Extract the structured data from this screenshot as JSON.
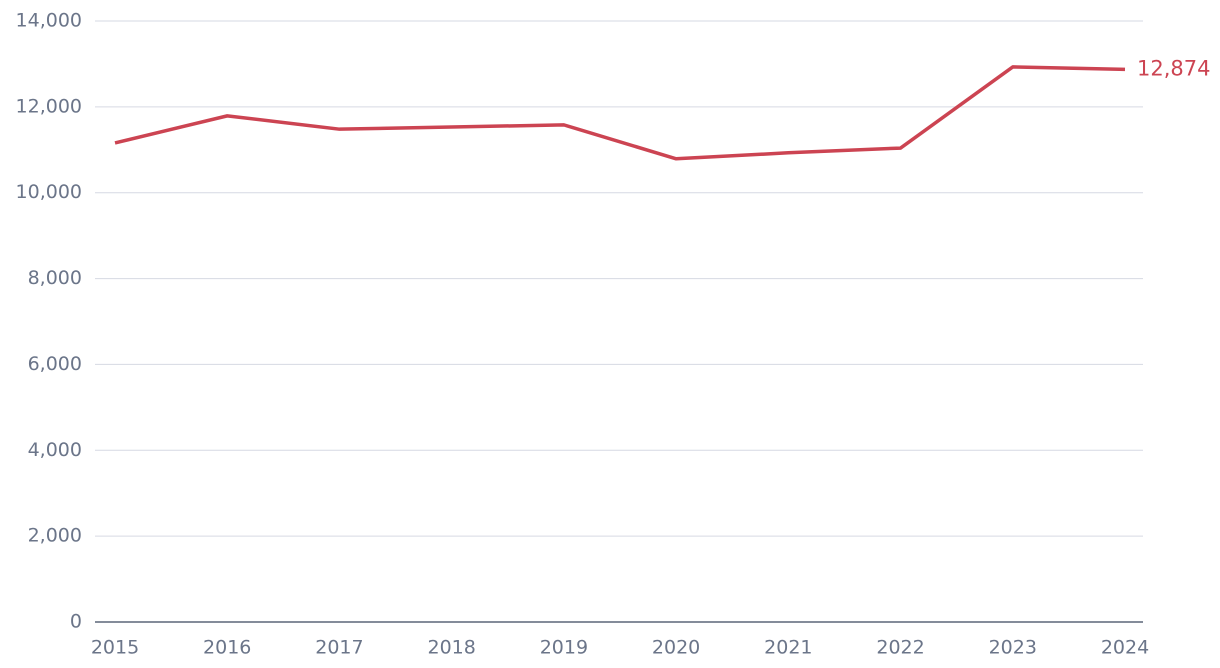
{
  "chart_data": {
    "type": "line",
    "categories": [
      "2015",
      "2016",
      "2017",
      "2018",
      "2019",
      "2020",
      "2021",
      "2022",
      "2023",
      "2024"
    ],
    "series": [
      {
        "color": "#cc4452",
        "values": [
          11160,
          11790,
          11480,
          11530,
          11580,
          10790,
          10930,
          11040,
          12930,
          12874
        ],
        "value_labels": [
          null,
          null,
          null,
          null,
          null,
          null,
          null,
          null,
          null,
          "12,874"
        ]
      }
    ],
    "ylim": [
      0,
      14000
    ],
    "yticks": [
      0,
      {
        "value": 2000,
        "label": "2,000"
      },
      {
        "value": 4000,
        "label": "4,000"
      },
      {
        "value": 6000,
        "label": "6,000"
      },
      {
        "value": 8000,
        "label": "8,000"
      },
      {
        "value": 10000,
        "label": "10,000"
      },
      {
        "value": 12000,
        "label": "12,000"
      },
      {
        "value": 14000,
        "label": "14,000"
      }
    ],
    "grid": true
  }
}
